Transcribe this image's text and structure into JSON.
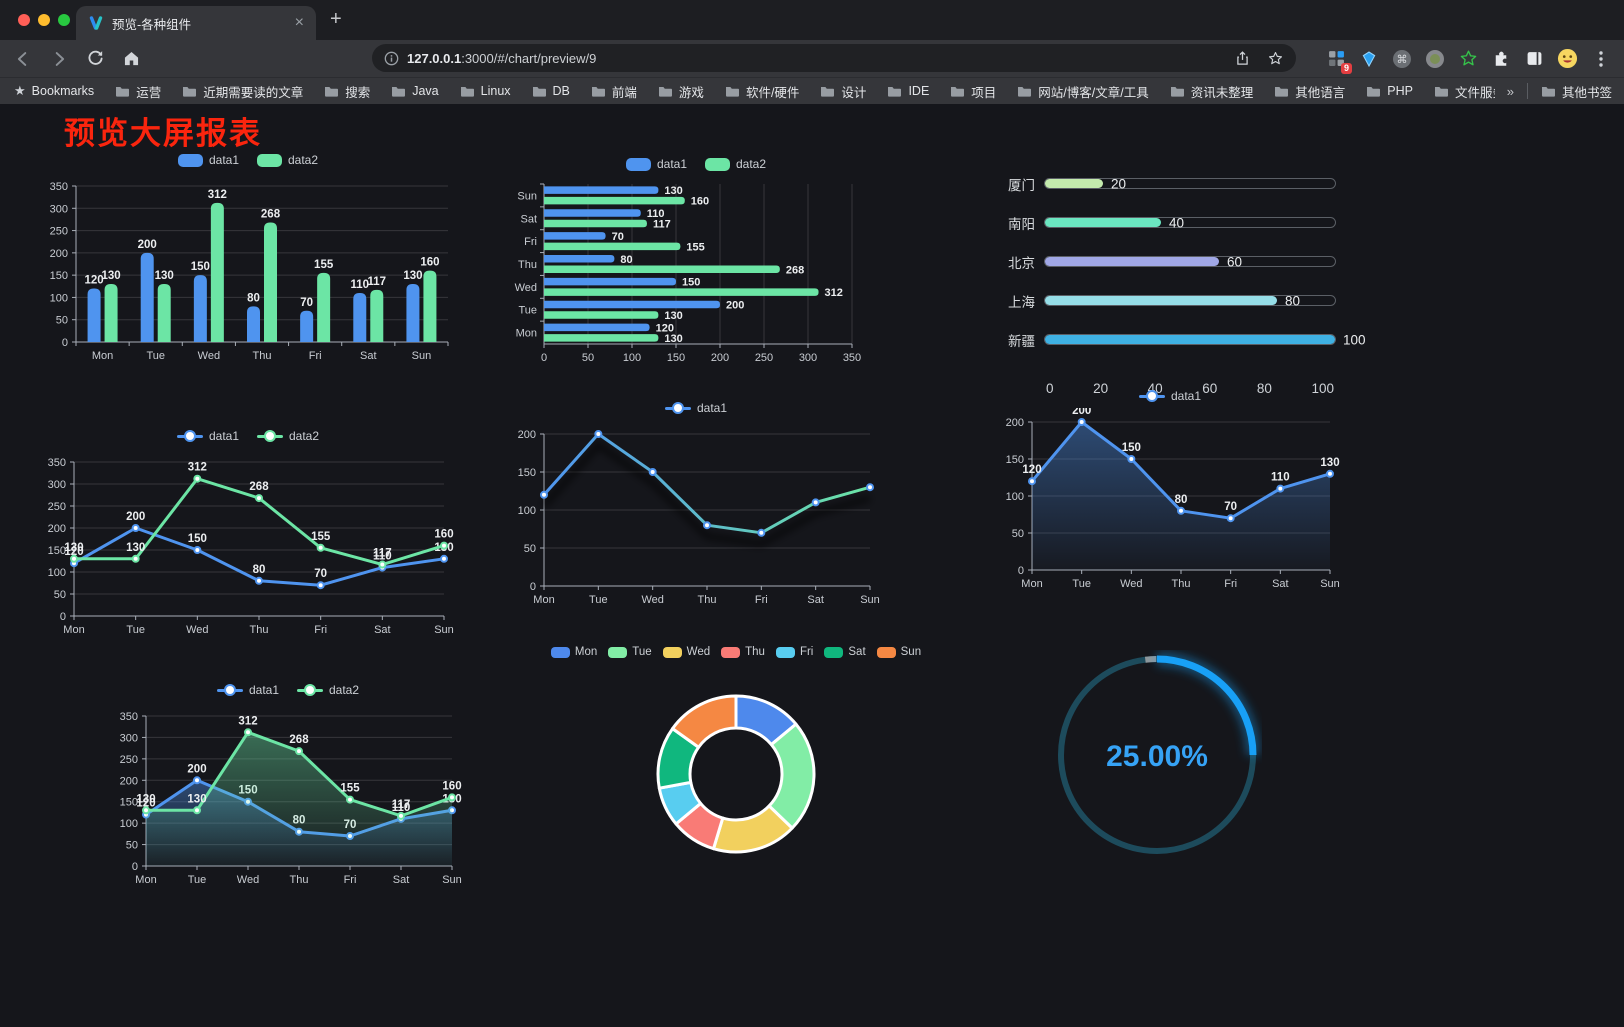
{
  "browser": {
    "traffic_lights": {
      "close": "#ff5f57",
      "minimize": "#febc2e",
      "zoom": "#28c840"
    },
    "tab": {
      "title": "预览-各种组件",
      "close_glyph": "×",
      "new_tab_glyph": "+"
    },
    "url": {
      "host": "127.0.0.1",
      "rest": ":3000/#/chart/preview/9"
    },
    "extensions_badge": "9",
    "menu_glyph": "⋮",
    "bookmarks": {
      "star_glyph": "★",
      "label": "Bookmarks",
      "folders": [
        "运营",
        "近期需要读的文章",
        "搜索",
        "Java",
        "Linux",
        "DB",
        "前端",
        "游戏",
        "软件/硬件",
        "设计",
        "IDE",
        "项目",
        "网站/博客/文章/工具",
        "资讯未整理",
        "其他语言",
        "PHP",
        "文件服务器"
      ],
      "overflow_glyph": "»",
      "other_bookmarks": "其他书签"
    }
  },
  "page": {
    "title": "预览大屏报表",
    "title_color": "#fa250e",
    "background": "#15161b"
  },
  "chart_data": [
    {
      "id": "grouped-bar",
      "type": "bar",
      "legend": true,
      "value_labels": true,
      "categories": [
        "Mon",
        "Tue",
        "Wed",
        "Thu",
        "Fri",
        "Sat",
        "Sun"
      ],
      "series": [
        {
          "name": "data1",
          "color": "#4f94ef",
          "values": [
            120,
            200,
            150,
            80,
            70,
            110,
            130
          ]
        },
        {
          "name": "data2",
          "color": "#6ce5a5",
          "values": [
            130,
            130,
            312,
            268,
            155,
            117,
            160
          ]
        }
      ],
      "ylim": [
        0,
        350
      ],
      "ytick": 50
    },
    {
      "id": "horizontal-bar",
      "type": "hbar",
      "legend": true,
      "value_labels": true,
      "categories": [
        "Sun",
        "Sat",
        "Fri",
        "Thu",
        "Wed",
        "Tue",
        "Mon"
      ],
      "series": [
        {
          "name": "data1",
          "color": "#4f94ef",
          "values": [
            130,
            110,
            70,
            80,
            150,
            200,
            120
          ]
        },
        {
          "name": "data2",
          "color": "#6ce5a5",
          "values": [
            160,
            117,
            155,
            268,
            312,
            130,
            130
          ]
        }
      ],
      "xlim": [
        0,
        350
      ],
      "xtick": 50
    },
    {
      "id": "progress-list",
      "type": "progress",
      "max": 100,
      "items": [
        {
          "label": "厦门",
          "value": 20,
          "color": "#c4ebad"
        },
        {
          "label": "南阳",
          "value": 40,
          "color": "#6be6c1"
        },
        {
          "label": "北京",
          "value": 60,
          "color": "#a0a7e6"
        },
        {
          "label": "上海",
          "value": 80,
          "color": "#96dee8"
        },
        {
          "label": "新疆",
          "value": 100,
          "color": "#3fb1e3"
        }
      ],
      "axis_ticks": [
        0,
        20,
        40,
        60,
        80,
        100
      ]
    },
    {
      "id": "line-two-series",
      "type": "line",
      "legend": true,
      "legend_marker": "line",
      "value_labels": true,
      "categories": [
        "Mon",
        "Tue",
        "Wed",
        "Thu",
        "Fri",
        "Sat",
        "Sun"
      ],
      "series": [
        {
          "name": "data1",
          "color": "#4f94ef",
          "values": [
            120,
            200,
            150,
            80,
            70,
            110,
            130
          ]
        },
        {
          "name": "data2",
          "color": "#6ce5a5",
          "values": [
            130,
            130,
            312,
            268,
            155,
            117,
            160
          ]
        }
      ],
      "ylim": [
        0,
        350
      ],
      "ytick": 50
    },
    {
      "id": "line-gradient",
      "type": "line",
      "legend": true,
      "legend_marker": "line",
      "value_labels": false,
      "shadow": true,
      "categories": [
        "Mon",
        "Tue",
        "Wed",
        "Thu",
        "Fri",
        "Sat",
        "Sun"
      ],
      "series": [
        {
          "name": "data1",
          "color": "#4f94ef",
          "gradient_to": "#6ce5a5",
          "values": [
            120,
            200,
            150,
            80,
            70,
            110,
            130
          ]
        }
      ],
      "ylim": [
        0,
        200
      ],
      "ytick": 50
    },
    {
      "id": "area-single",
      "type": "line",
      "legend": true,
      "legend_marker": "line",
      "value_labels": true,
      "categories": [
        "Mon",
        "Tue",
        "Wed",
        "Thu",
        "Fri",
        "Sat",
        "Sun"
      ],
      "series": [
        {
          "name": "data1",
          "color": "#4f94ef",
          "area": true,
          "values": [
            120,
            200,
            150,
            80,
            70,
            110,
            130
          ]
        }
      ],
      "ylim": [
        0,
        200
      ],
      "ytick": 50
    },
    {
      "id": "area-two-series",
      "type": "line",
      "legend": true,
      "legend_marker": "line",
      "value_labels": true,
      "categories": [
        "Mon",
        "Tue",
        "Wed",
        "Thu",
        "Fri",
        "Sat",
        "Sun"
      ],
      "series": [
        {
          "name": "data1",
          "color": "#4f94ef",
          "area": true,
          "values": [
            120,
            200,
            150,
            80,
            70,
            110,
            130
          ]
        },
        {
          "name": "data2",
          "color": "#6ce5a5",
          "area": true,
          "values": [
            130,
            130,
            312,
            268,
            155,
            117,
            160
          ]
        }
      ],
      "ylim": [
        0,
        350
      ],
      "ytick": 50
    },
    {
      "id": "donut",
      "type": "pie",
      "legend": true,
      "items": [
        {
          "name": "Mon",
          "value": 120,
          "color": "#4e89ec"
        },
        {
          "name": "Tue",
          "value": 200,
          "color": "#82eda6"
        },
        {
          "name": "Wed",
          "value": 150,
          "color": "#f2d05e"
        },
        {
          "name": "Thu",
          "value": 80,
          "color": "#f97b76"
        },
        {
          "name": "Fri",
          "value": 70,
          "color": "#58cdf0"
        },
        {
          "name": "Sat",
          "value": 110,
          "color": "#10b77e"
        },
        {
          "name": "Sun",
          "value": 130,
          "color": "#f58843"
        }
      ]
    },
    {
      "id": "gauge",
      "type": "gauge",
      "value": 25,
      "max": 100,
      "label": "25.00%",
      "color": "#18a0f6",
      "track_color": "#1d4b5c"
    }
  ]
}
